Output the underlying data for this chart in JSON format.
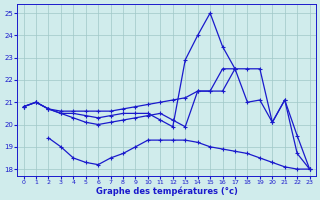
{
  "xlabel": "Graphe des températures (°c)",
  "xlim_min": -0.5,
  "xlim_max": 23.5,
  "ylim_min": 17.7,
  "ylim_max": 25.4,
  "yticks": [
    18,
    19,
    20,
    21,
    22,
    23,
    24,
    25
  ],
  "xticks": [
    0,
    1,
    2,
    3,
    4,
    5,
    6,
    7,
    8,
    9,
    10,
    11,
    12,
    13,
    14,
    15,
    16,
    17,
    18,
    19,
    20,
    21,
    22,
    23
  ],
  "bg_color": "#d0ecec",
  "line_color": "#1a1acc",
  "grid_color": "#a0c8c8",
  "lines": [
    {
      "x": [
        0,
        1,
        2,
        3,
        4,
        5,
        6,
        7,
        8,
        9,
        10,
        11,
        12,
        13,
        14,
        15,
        16,
        17,
        18,
        19,
        20,
        21,
        22,
        23
      ],
      "y": [
        20.8,
        21.0,
        20.7,
        20.6,
        20.6,
        20.6,
        20.6,
        20.6,
        20.7,
        20.8,
        20.9,
        21.0,
        21.1,
        21.2,
        21.5,
        21.5,
        21.5,
        22.5,
        22.5,
        22.5,
        20.1,
        21.1,
        19.5,
        18.0
      ]
    },
    {
      "x": [
        0,
        1,
        2,
        3,
        4,
        5,
        6,
        7,
        8,
        9,
        10,
        11,
        12,
        13,
        14,
        15,
        16,
        17
      ],
      "y": [
        20.8,
        21.0,
        20.7,
        20.5,
        20.5,
        20.4,
        20.3,
        20.4,
        20.5,
        20.5,
        20.5,
        20.2,
        19.9,
        22.9,
        24.0,
        25.0,
        23.5,
        22.5
      ]
    },
    {
      "x": [
        0,
        1,
        2,
        3,
        4,
        5,
        6,
        7,
        8,
        9,
        10,
        11,
        12,
        13,
        14,
        15,
        16,
        17,
        18,
        19,
        20,
        21,
        22,
        23
      ],
      "y": [
        20.8,
        21.0,
        20.7,
        20.5,
        20.3,
        20.1,
        20.0,
        20.1,
        20.2,
        20.3,
        20.4,
        20.5,
        20.2,
        19.9,
        21.5,
        21.5,
        22.5,
        22.5,
        21.0,
        21.1,
        20.1,
        21.1,
        18.7,
        18.0
      ]
    },
    {
      "x": [
        2,
        3,
        4,
        5,
        6,
        7,
        8,
        9,
        10,
        11,
        12,
        13,
        14,
        15,
        16,
        17,
        18,
        19,
        20,
        21,
        22,
        23
      ],
      "y": [
        19.4,
        19.0,
        18.5,
        18.3,
        18.2,
        18.5,
        18.7,
        19.0,
        19.3,
        19.3,
        19.3,
        19.3,
        19.2,
        19.0,
        18.9,
        18.8,
        18.7,
        18.5,
        18.3,
        18.1,
        18.0,
        18.0
      ]
    }
  ]
}
